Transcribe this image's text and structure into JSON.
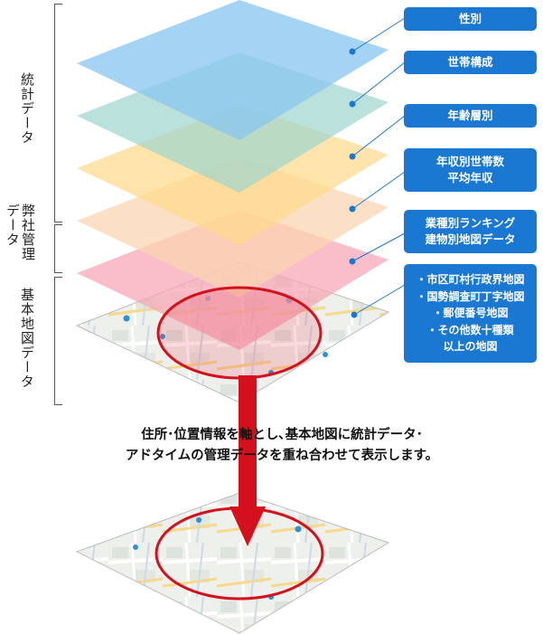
{
  "side_labels": {
    "statistics": "統計データ",
    "company_line1": "弊社管理",
    "company_line2": "データ",
    "base_map": "基本地図データ"
  },
  "layer_tags": {
    "gender": "性別",
    "household": "世帯構成",
    "age": "年齢層別",
    "income_line1": "年収別世帯数",
    "income_line2": "平均年収",
    "ranking_line1": "業種別ランキング",
    "ranking_line2": "建物別地図データ"
  },
  "map_list": [
    "・市区町村行政界地図",
    "・国勢調査町丁字地図",
    "・郵便番号地図",
    "・その他数十種類",
    "以上の地図"
  ],
  "caption": {
    "line1": "住所･位置情報を軸とし､基本地図に統計データ･",
    "line2": "アドタイムの管理データを重ね合わせて表示します。"
  },
  "colors": {
    "tag_blue": "#1a78d2",
    "arrow_red": "#d4101c",
    "layer_blue": "#8cc6ef",
    "layer_teal": "#9fd6cd",
    "layer_yellow": "#ffd98a",
    "layer_peach": "#fbd4b0",
    "layer_pink": "#f6a5b4"
  }
}
